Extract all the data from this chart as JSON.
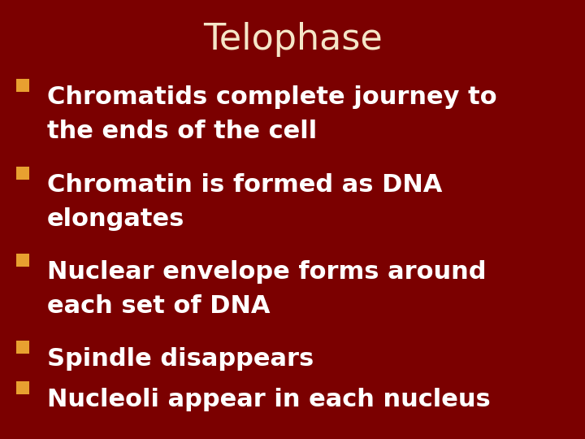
{
  "title": "Telophase",
  "title_color": "#F5E6C8",
  "title_fontsize": 32,
  "title_fontweight": "normal",
  "background_color": "#7B0000",
  "bullet_color": "#E8A030",
  "text_color": "#FFFFFF",
  "bullet_items": [
    [
      "Chromatids complete journey to",
      "the ends of the cell"
    ],
    [
      "Chromatin is formed as DNA",
      "elongates"
    ],
    [
      "Nuclear envelope forms around",
      "each set of DNA"
    ],
    [
      "Spindle disappears"
    ],
    [
      "Nucleoli appear in each nucleus"
    ]
  ],
  "bullet_fontsize": 22,
  "bullet_fontweight": "bold",
  "figwidth": 7.2,
  "figheight": 5.4,
  "dpi": 100
}
